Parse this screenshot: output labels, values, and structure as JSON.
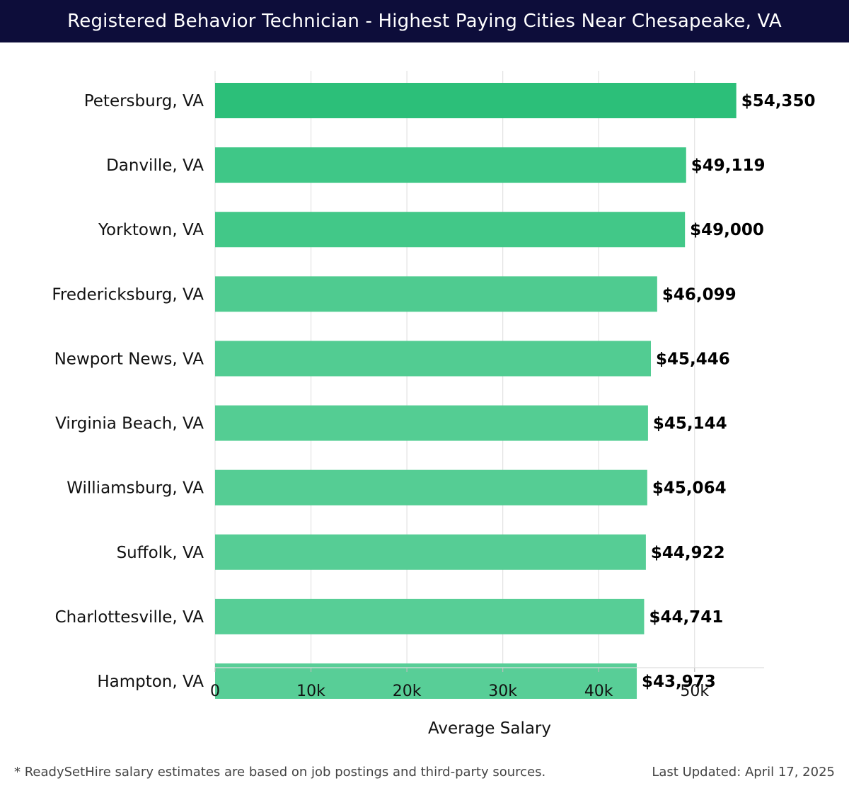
{
  "header": {
    "title": "Registered Behavior Technician - Highest Paying Cities Near Chesapeake, VA"
  },
  "chart_data": {
    "type": "bar",
    "orientation": "horizontal",
    "categories": [
      "Petersburg, VA",
      "Danville, VA",
      "Yorktown, VA",
      "Fredericksburg, VA",
      "Newport News, VA",
      "Virginia Beach, VA",
      "Williamsburg, VA",
      "Suffolk, VA",
      "Charlottesville, VA",
      "Hampton, VA"
    ],
    "values": [
      54350,
      49119,
      49000,
      46099,
      45446,
      45144,
      45064,
      44922,
      44741,
      43973
    ],
    "value_labels": [
      "$54,350",
      "$49,119",
      "$49,000",
      "$46,099",
      "$45,446",
      "$45,144",
      "$45,064",
      "$44,922",
      "$44,741",
      "$43,973"
    ],
    "xlabel": "Average Salary",
    "ylabel": "",
    "xlim": [
      0,
      57250
    ],
    "xticks": [
      0,
      10000,
      20000,
      30000,
      40000,
      50000
    ],
    "xtick_labels": [
      "0",
      "10k",
      "20k",
      "30k",
      "40k",
      "50k"
    ],
    "grid": true,
    "colors": [
      "#2cbf79",
      "#3fc787",
      "#42c888",
      "#4fcb90",
      "#52cc92",
      "#54cd93",
      "#55cd94",
      "#56cd95",
      "#57ce96",
      "#58ce97"
    ]
  },
  "footer": {
    "note": "* ReadySetHire salary estimates are based on job postings and third-party sources.",
    "updated": "Last Updated: April 17, 2025"
  }
}
